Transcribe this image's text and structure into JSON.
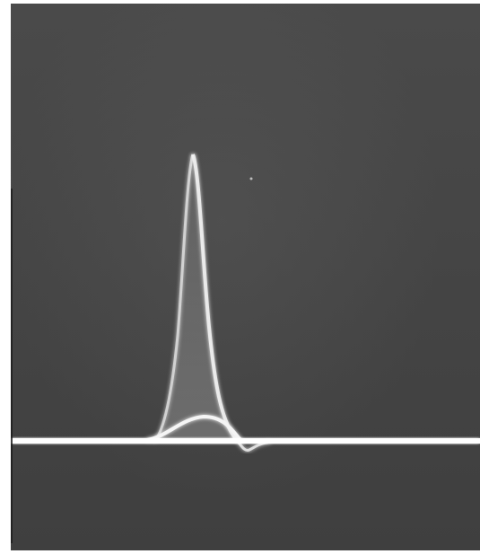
{
  "scene": {
    "description_id": "oscilloscope-photograph",
    "colors": {
      "screen": "#474747",
      "trace": "#f2f2f2",
      "trace_glow": "#d9d9d9",
      "border": "#ffffff"
    }
  }
}
